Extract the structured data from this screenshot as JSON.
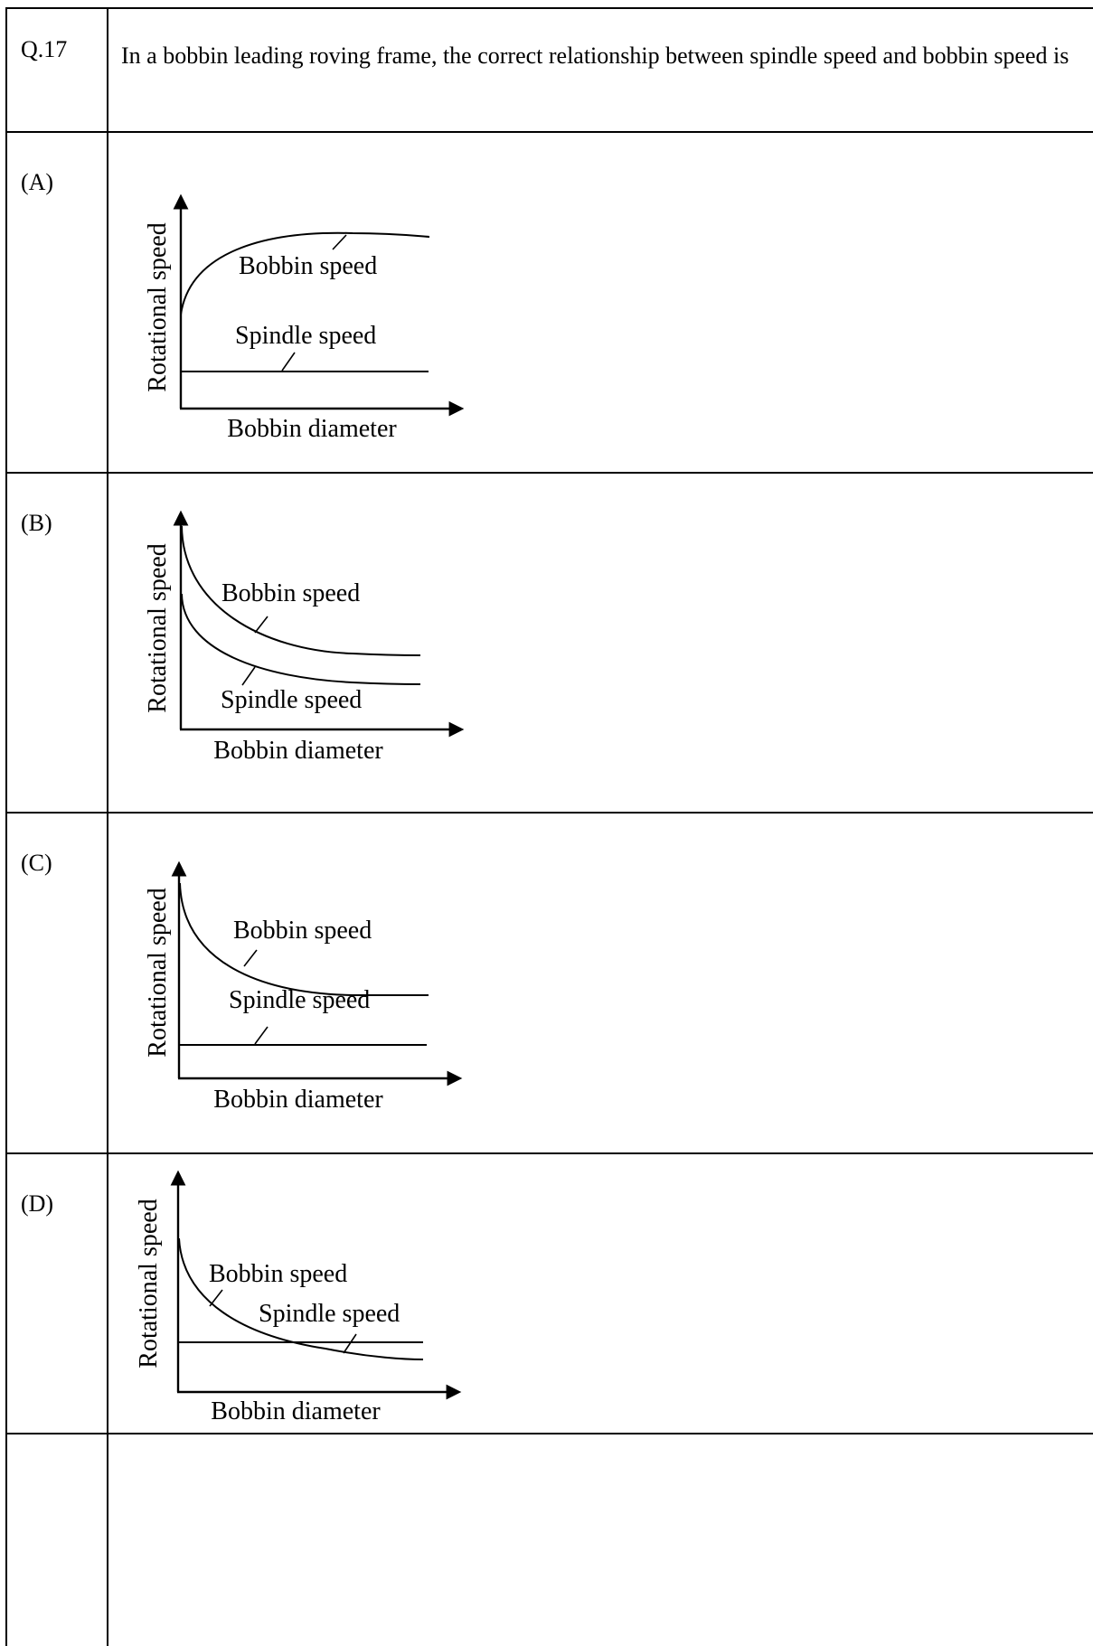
{
  "question": {
    "number": "Q.17",
    "text": "In a bobbin leading roving frame, the correct relationship between spindle speed and bobbin speed is"
  },
  "options": [
    {
      "label": "(A)",
      "y_axis": "Rotational speed",
      "x_axis": "Bobbin diameter",
      "bobbin_label": "Bobbin speed",
      "spindle_label": "Spindle speed"
    },
    {
      "label": "(B)",
      "y_axis": "Rotational speed",
      "x_axis": "Bobbin diameter",
      "bobbin_label": "Bobbin speed",
      "spindle_label": "Spindle speed"
    },
    {
      "label": "(C)",
      "y_axis": "Rotational speed",
      "x_axis": "Bobbin diameter",
      "bobbin_label": "Bobbin speed",
      "spindle_label": "Spindle speed"
    },
    {
      "label": "(D)",
      "y_axis": "Rotational speed",
      "x_axis": "Bobbin diameter",
      "bobbin_label": "Bobbin speed",
      "spindle_label": "Spindle speed"
    }
  ]
}
